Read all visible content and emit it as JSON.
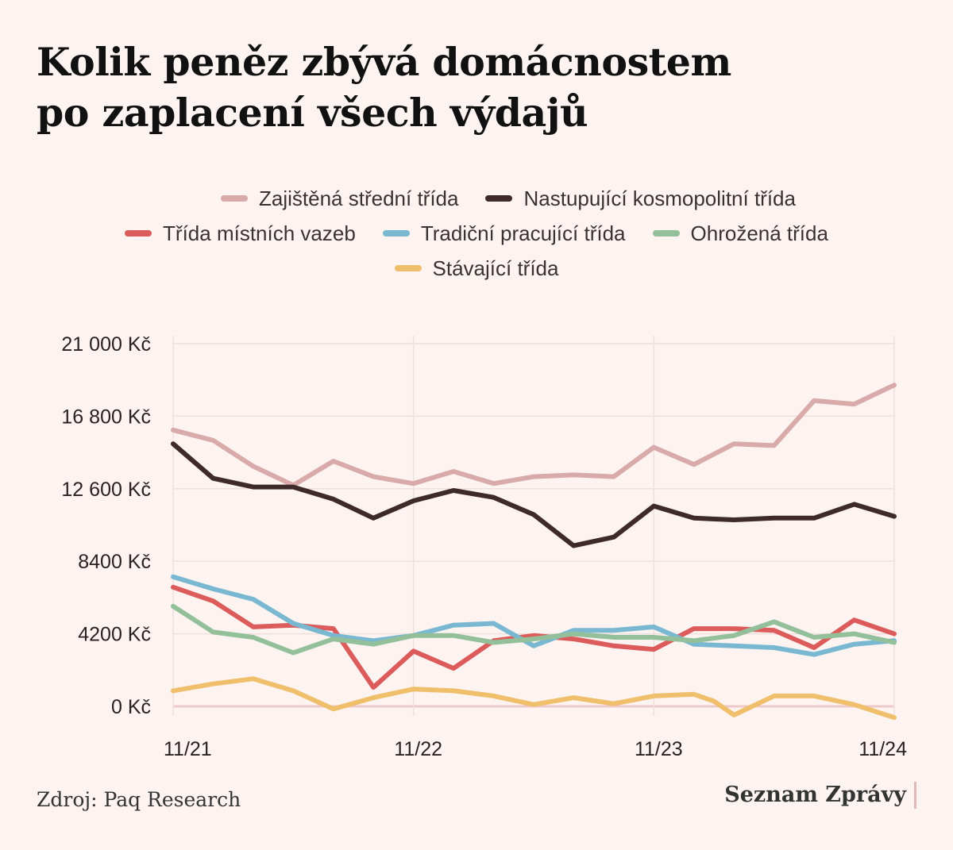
{
  "title": {
    "line1": "Kolik peněz zbývá domácnostem",
    "line2": "po zaplacení všech výdajů"
  },
  "source": "Zdroj: Paq Research",
  "brand": "Seznam Zprávy",
  "chart_data": {
    "type": "line",
    "title": "Kolik peněz zbývá domácnostem po zaplacení všech výdajů",
    "x": [
      0,
      1,
      2,
      3,
      4,
      5,
      6,
      7,
      8,
      9,
      10,
      11,
      12,
      13,
      14,
      15,
      16,
      17,
      18,
      19,
      20,
      21,
      22,
      23,
      24,
      25,
      26,
      27,
      28,
      29,
      30,
      31,
      32,
      33,
      34,
      35,
      36
    ],
    "x_ticks": [
      {
        "x": 0,
        "label": "11/21"
      },
      {
        "x": 12,
        "label": "11/22"
      },
      {
        "x": 24,
        "label": "11/23"
      },
      {
        "x": 36,
        "label": "11/24"
      }
    ],
    "y_ticks": [
      {
        "value": 0,
        "label": "0 Kč"
      },
      {
        "value": 4200,
        "label": "4200 Kč"
      },
      {
        "value": 8400,
        "label": "8400 Kč"
      },
      {
        "value": 12600,
        "label": "12 600 Kč"
      },
      {
        "value": 16800,
        "label": "16 800 Kč"
      },
      {
        "value": 21000,
        "label": "21 000 Kč"
      }
    ],
    "ylim": [
      -800,
      21000
    ],
    "grid": true,
    "legend_position": "top-center",
    "series": [
      {
        "name": "Zajištěná střední třída",
        "color": "#d9aaaa",
        "points": [
          [
            0,
            16000
          ],
          [
            2,
            15400
          ],
          [
            4,
            13900
          ],
          [
            6,
            12800
          ],
          [
            8,
            14200
          ],
          [
            10,
            13300
          ],
          [
            12,
            12900
          ],
          [
            14,
            13600
          ],
          [
            16,
            12900
          ],
          [
            18,
            13300
          ],
          [
            20,
            13400
          ],
          [
            22,
            13300
          ],
          [
            24,
            15000
          ],
          [
            26,
            14000
          ],
          [
            28,
            15200
          ],
          [
            30,
            15100
          ],
          [
            32,
            17700
          ],
          [
            34,
            17500
          ],
          [
            36,
            18600
          ]
        ]
      },
      {
        "name": "Nastupující kosmopolitní třída",
        "color": "#3e2a2a",
        "points": [
          [
            0,
            15200
          ],
          [
            2,
            13200
          ],
          [
            4,
            12700
          ],
          [
            6,
            12700
          ],
          [
            8,
            12000
          ],
          [
            10,
            10900
          ],
          [
            12,
            11900
          ],
          [
            14,
            12500
          ],
          [
            16,
            12100
          ],
          [
            18,
            11100
          ],
          [
            20,
            9300
          ],
          [
            22,
            9800
          ],
          [
            24,
            11600
          ],
          [
            26,
            10900
          ],
          [
            28,
            10800
          ],
          [
            30,
            10900
          ],
          [
            32,
            10900
          ],
          [
            34,
            11700
          ],
          [
            36,
            11000
          ]
        ]
      },
      {
        "name": "Třída místních vazeb",
        "color": "#dc5c5c",
        "points": [
          [
            0,
            6900
          ],
          [
            2,
            6100
          ],
          [
            4,
            4600
          ],
          [
            6,
            4700
          ],
          [
            8,
            4500
          ],
          [
            9,
            2800
          ],
          [
            10,
            1100
          ],
          [
            12,
            3200
          ],
          [
            14,
            2200
          ],
          [
            16,
            3800
          ],
          [
            18,
            4100
          ],
          [
            20,
            3900
          ],
          [
            22,
            3500
          ],
          [
            24,
            3300
          ],
          [
            26,
            4500
          ],
          [
            28,
            4500
          ],
          [
            30,
            4400
          ],
          [
            32,
            3400
          ],
          [
            34,
            5000
          ],
          [
            36,
            4200
          ]
        ]
      },
      {
        "name": "Tradiční pracující třída",
        "color": "#7ab8d1",
        "points": [
          [
            0,
            7500
          ],
          [
            2,
            6800
          ],
          [
            4,
            6200
          ],
          [
            6,
            4800
          ],
          [
            8,
            4100
          ],
          [
            10,
            3800
          ],
          [
            12,
            4100
          ],
          [
            14,
            4700
          ],
          [
            16,
            4800
          ],
          [
            18,
            3500
          ],
          [
            20,
            4400
          ],
          [
            22,
            4400
          ],
          [
            24,
            4600
          ],
          [
            26,
            3600
          ],
          [
            28,
            3500
          ],
          [
            30,
            3400
          ],
          [
            32,
            3000
          ],
          [
            34,
            3600
          ],
          [
            36,
            3800
          ]
        ]
      },
      {
        "name": "Ohrožená třída",
        "color": "#93c09a",
        "points": [
          [
            0,
            5800
          ],
          [
            2,
            4300
          ],
          [
            4,
            4000
          ],
          [
            6,
            3100
          ],
          [
            8,
            3900
          ],
          [
            10,
            3600
          ],
          [
            12,
            4100
          ],
          [
            14,
            4100
          ],
          [
            16,
            3700
          ],
          [
            18,
            3900
          ],
          [
            20,
            4200
          ],
          [
            22,
            4000
          ],
          [
            24,
            4000
          ],
          [
            26,
            3800
          ],
          [
            28,
            4100
          ],
          [
            30,
            4900
          ],
          [
            32,
            4000
          ],
          [
            34,
            4200
          ],
          [
            36,
            3700
          ]
        ]
      },
      {
        "name": "Stávající třída",
        "color": "#f0bf6c",
        "points": [
          [
            0,
            900
          ],
          [
            2,
            1300
          ],
          [
            4,
            1600
          ],
          [
            6,
            900
          ],
          [
            8,
            -150
          ],
          [
            10,
            500
          ],
          [
            12,
            1000
          ],
          [
            14,
            900
          ],
          [
            16,
            600
          ],
          [
            18,
            100
          ],
          [
            20,
            500
          ],
          [
            22,
            150
          ],
          [
            24,
            600
          ],
          [
            26,
            700
          ],
          [
            27,
            300
          ],
          [
            28,
            -500
          ],
          [
            30,
            600
          ],
          [
            32,
            600
          ],
          [
            34,
            100
          ],
          [
            36,
            -650
          ]
        ]
      }
    ]
  }
}
